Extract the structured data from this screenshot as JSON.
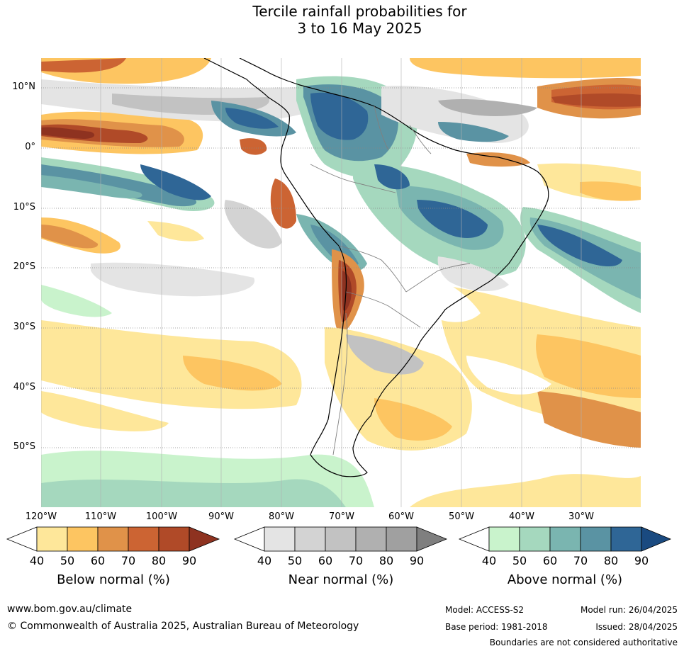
{
  "title": {
    "line1": "Tercile rainfall probabilities for",
    "line2": "3 to 16 May 2025"
  },
  "map": {
    "lat_labels": [
      "10°N",
      "0°",
      "10°S",
      "20°S",
      "30°S",
      "40°S",
      "50°S"
    ],
    "lon_labels": [
      "120°W",
      "110°W",
      "100°W",
      "90°W",
      "80°W",
      "70°W",
      "60°W",
      "50°W",
      "40°W",
      "30°W"
    ],
    "gridlines": "dotted",
    "colors": {
      "below": [
        "#ffffff",
        "#fee79a",
        "#fdc561",
        "#e09249",
        "#cc6433",
        "#b04a28",
        "#8e3220"
      ],
      "near": [
        "#ffffff",
        "#e4e4e4",
        "#d3d3d3",
        "#c2c2c2",
        "#b0b0b0",
        "#a0a0a0",
        "#7f7f7f"
      ],
      "above": [
        "#ffffff",
        "#c9f3cc",
        "#a5d8be",
        "#7ab5b0",
        "#5a93a3",
        "#2f6696",
        "#1a4a80"
      ]
    }
  },
  "legends": [
    {
      "caption": "Below normal (%)",
      "ticks": [
        "40",
        "50",
        "60",
        "70",
        "80",
        "90"
      ]
    },
    {
      "caption": "Near normal (%)",
      "ticks": [
        "40",
        "50",
        "60",
        "70",
        "80",
        "90"
      ]
    },
    {
      "caption": "Above normal (%)",
      "ticks": [
        "40",
        "50",
        "60",
        "70",
        "80",
        "90"
      ]
    }
  ],
  "footer": {
    "website": "www.bom.gov.au/climate",
    "copyright": "© Commonwealth of Australia 2025, Australian Bureau of Meteorology",
    "model": "Model: ACCESS-S2",
    "model_run": "Model run: 26/04/2025",
    "base_period": "Base period: 1981-2018",
    "issued": "Issued: 28/04/2025",
    "disclaimer": "Boundaries are not considered authoritative"
  }
}
